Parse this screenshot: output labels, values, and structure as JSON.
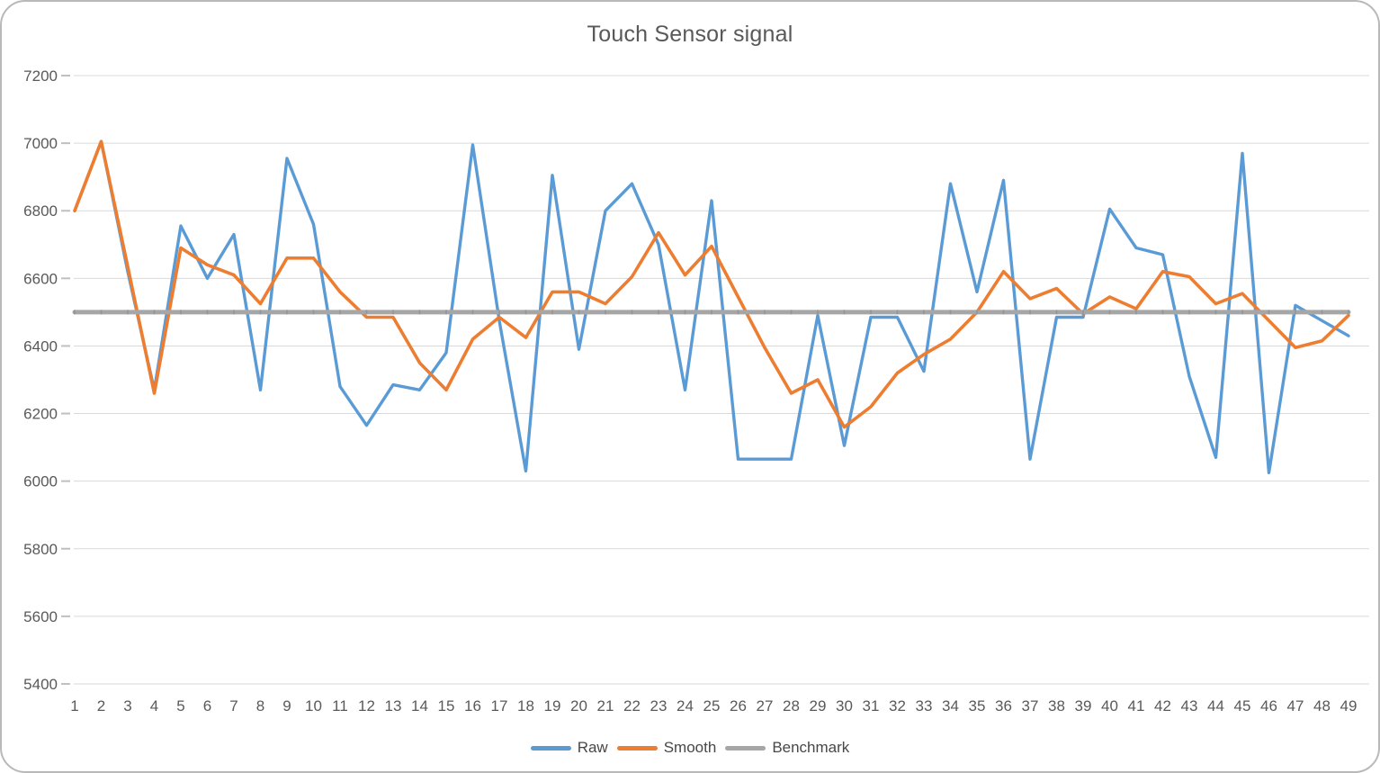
{
  "card": {
    "title": "Touch Sensor signal"
  },
  "colors": {
    "raw": "#5B9BD5",
    "smooth": "#ED7D31",
    "benchmark": "#A6A6A6",
    "benchmark_tick": "#959595",
    "gridline": "#D9D9D9",
    "axis_tick": "#C0C0C0",
    "axis_text": "#595959",
    "title_text": "#595959",
    "legend_text": "#474747"
  },
  "chart_data": {
    "type": "line",
    "title": "Touch Sensor signal",
    "xlabel": "",
    "ylabel": "",
    "ylim": [
      5400,
      7200
    ],
    "y_ticks": [
      5400,
      5600,
      5800,
      6000,
      6200,
      6400,
      6600,
      6800,
      7000,
      7200
    ],
    "grid": "horizontal",
    "legend_position": "bottom",
    "x": [
      1,
      2,
      3,
      4,
      5,
      6,
      7,
      8,
      9,
      10,
      11,
      12,
      13,
      14,
      15,
      16,
      17,
      18,
      19,
      20,
      21,
      22,
      23,
      24,
      25,
      26,
      27,
      28,
      29,
      30,
      31,
      32,
      33,
      34,
      35,
      36,
      37,
      38,
      39,
      40,
      41,
      42,
      43,
      44,
      45,
      46,
      47,
      48,
      49
    ],
    "series": [
      {
        "name": "Raw",
        "color": "#5B9BD5",
        "values": [
          6800,
          7005,
          6620,
          6270,
          6755,
          6600,
          6730,
          6270,
          6955,
          6760,
          6280,
          6165,
          6285,
          6270,
          6380,
          6995,
          6475,
          6030,
          6905,
          6390,
          6800,
          6880,
          6700,
          6270,
          6830,
          6065,
          6065,
          6065,
          6490,
          6105,
          6485,
          6485,
          6325,
          6880,
          6560,
          6890,
          6065,
          6485,
          6485,
          6805,
          6690,
          6670,
          6310,
          6070,
          6970,
          6025,
          6520,
          6475,
          6430
        ]
      },
      {
        "name": "Smooth",
        "color": "#ED7D31",
        "values": [
          6800,
          7005,
          6635,
          6260,
          6690,
          6640,
          6610,
          6525,
          6660,
          6660,
          6560,
          6485,
          6485,
          6350,
          6270,
          6420,
          6485,
          6425,
          6560,
          6560,
          6525,
          6605,
          6735,
          6610,
          6695,
          6545,
          6395,
          6260,
          6300,
          6160,
          6220,
          6320,
          6375,
          6420,
          6500,
          6620,
          6540,
          6570,
          6495,
          6545,
          6510,
          6620,
          6605,
          6525,
          6555,
          6475,
          6395,
          6415,
          6490
        ]
      },
      {
        "name": "Benchmark",
        "color": "#A6A6A6",
        "constant": 6500
      }
    ]
  },
  "legend": {
    "items": [
      {
        "label": "Raw",
        "color": "#5B9BD5"
      },
      {
        "label": "Smooth",
        "color": "#ED7D31"
      },
      {
        "label": "Benchmark",
        "color": "#A6A6A6"
      }
    ]
  }
}
